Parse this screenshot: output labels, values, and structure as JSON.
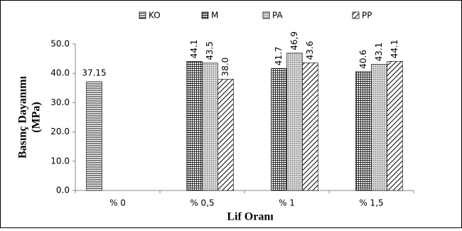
{
  "chart_data": {
    "type": "bar",
    "xlabel": "Lif Oranı",
    "ylabel": [
      "Basınç Dayanımı",
      "(MPa)"
    ],
    "categories": [
      "% 0",
      "% 0,5",
      "% 1",
      "% 1,5"
    ],
    "series": [
      {
        "name": "KO",
        "color": "#000000",
        "values": [
          37.15,
          null,
          null,
          null
        ],
        "value_labels": [
          "37.15",
          null,
          null,
          null
        ]
      },
      {
        "name": "M",
        "color": "#000000",
        "values": [
          null,
          44.1,
          41.7,
          40.6
        ],
        "value_labels": [
          null,
          "44.1",
          "41.7",
          "40.6"
        ]
      },
      {
        "name": "PA",
        "color": "#000000",
        "values": [
          null,
          43.5,
          46.9,
          43.1
        ],
        "value_labels": [
          null,
          "43.5",
          "46,9",
          "43.1"
        ]
      },
      {
        "name": "PP",
        "color": "#000000",
        "values": [
          null,
          38.0,
          43.6,
          44.1
        ],
        "value_labels": [
          null,
          "38.0",
          "43.6",
          "44.1"
        ]
      }
    ],
    "ylim": [
      0,
      50
    ],
    "yticks": [
      {
        "value": 0,
        "label": "0.0"
      },
      {
        "value": 10,
        "label": "10.0"
      },
      {
        "value": 20,
        "label": "20.0"
      },
      {
        "value": 30,
        "label": "30.0"
      },
      {
        "value": 40,
        "label": "40.0"
      },
      {
        "value": 50,
        "label": "50.0"
      }
    ],
    "grid": false,
    "legend": "top"
  }
}
